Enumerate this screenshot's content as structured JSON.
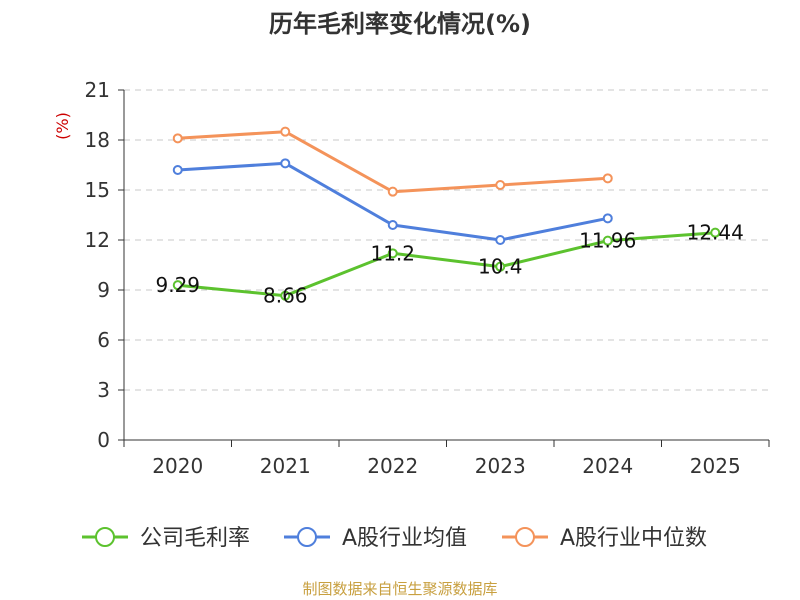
{
  "chart_data": {
    "type": "line",
    "title": "历年毛利率变化情况(%)",
    "unit_label": "(%)",
    "categories": [
      "2020",
      "2021",
      "2022",
      "2023",
      "2024",
      "2025"
    ],
    "yticks": [
      "0",
      "3",
      "6",
      "9",
      "12",
      "15",
      "18",
      "21"
    ],
    "ylim": [
      0,
      21
    ],
    "grid": true,
    "series": [
      {
        "name": "公司毛利率",
        "color": "#5cc22e",
        "values": [
          9.29,
          8.66,
          11.2,
          10.4,
          11.96,
          12.44
        ],
        "labels": [
          "9.29",
          "8.66",
          "11.2",
          "10.4",
          "11.96",
          "12.44"
        ],
        "show_labels": true
      },
      {
        "name": "A股行业均值",
        "color": "#4f7fdc",
        "values": [
          16.2,
          16.6,
          12.9,
          12.0,
          13.3,
          null
        ],
        "show_labels": false
      },
      {
        "name": "A股行业中位数",
        "color": "#f4935a",
        "values": [
          18.1,
          18.5,
          14.9,
          15.3,
          15.7,
          null
        ],
        "show_labels": false
      }
    ],
    "legend_position": "bottom",
    "source": "制图数据来自恒生聚源数据库"
  }
}
